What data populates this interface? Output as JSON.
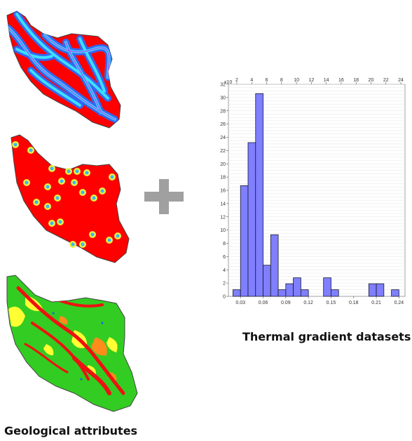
{
  "captions": {
    "thermal": "Thermal gradient datasets",
    "geological": "Geological attributes"
  },
  "colors": {
    "map_fill": "#ff0000",
    "fault_outer": "#2b6cff",
    "fault_inner": "#3de0ff",
    "spring_ring": "#e8f040",
    "spring_core": "#3cb4ff",
    "geo_green": "#33cc22",
    "geo_yellow": "#ffff33",
    "geo_orange": "#ff8c1a",
    "bar_fill": "#7f7fff",
    "plus": "#a0a0a0"
  },
  "icons": {
    "plus": "plus-icon"
  },
  "chart_data": {
    "type": "bar",
    "bin_width": 0.01,
    "x": [
      0.025,
      0.035,
      0.045,
      0.055,
      0.065,
      0.075,
      0.085,
      0.095,
      0.105,
      0.115,
      0.145,
      0.155,
      0.205,
      0.215,
      0.235
    ],
    "values": [
      1,
      16.7,
      23.2,
      30.6,
      4.7,
      9.3,
      1,
      1.9,
      2.8,
      1,
      2.8,
      1,
      1.9,
      1.9,
      1
    ],
    "xlim": [
      0.014,
      0.248
    ],
    "ylim": [
      0,
      32
    ],
    "x_ticks": [
      "0.03",
      "0.06",
      "0.09",
      "0.12",
      "0.15",
      "0.18",
      "0.21",
      "0.24"
    ],
    "x_tick_values": [
      0.03,
      0.06,
      0.09,
      0.12,
      0.15,
      0.18,
      0.21,
      0.24
    ],
    "y_ticks": [
      "0",
      "2",
      "4",
      "6",
      "8",
      "10",
      "12",
      "14",
      "16",
      "18",
      "20",
      "22",
      "24",
      "26",
      "28",
      "30",
      "32"
    ],
    "top_ticks": [
      "2",
      "4",
      "6",
      "8",
      "10",
      "12",
      "14",
      "16",
      "18",
      "20",
      "22",
      "24"
    ],
    "y_label_fragment": "x10",
    "grid": true
  }
}
